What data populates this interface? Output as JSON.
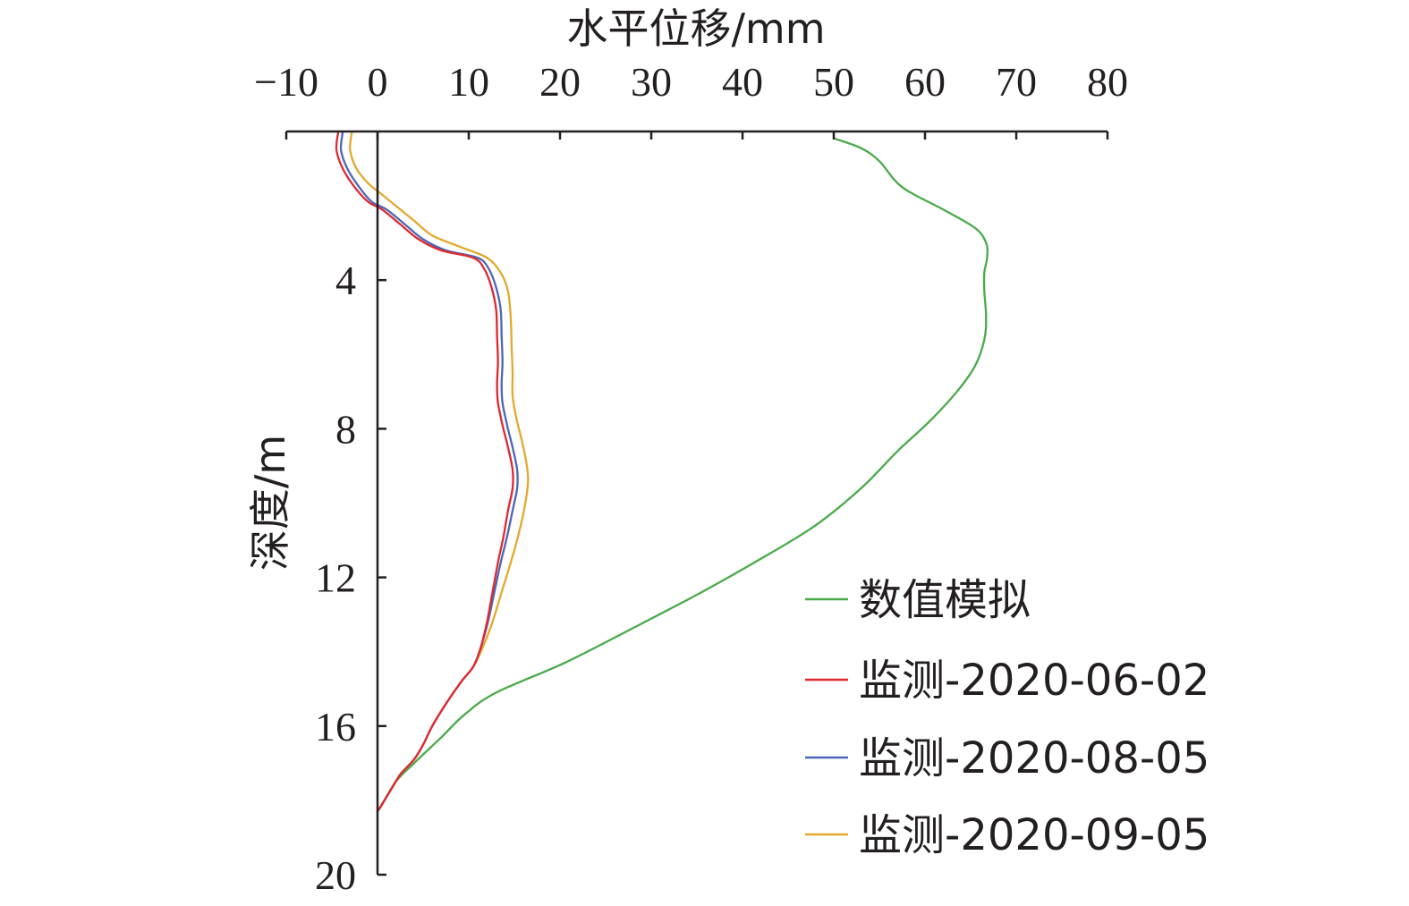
{
  "chart_data": {
    "type": "line",
    "xlabel": "水平位移/mm",
    "ylabel": "深度/m",
    "x_axis_position": "top",
    "y_inverted": true,
    "xlim": [
      -10,
      80
    ],
    "ylim": [
      0,
      20
    ],
    "x_ticks": [
      {
        "value": -10,
        "label": "−10"
      },
      {
        "value": 0,
        "label": "0"
      },
      {
        "value": 10,
        "label": "10"
      },
      {
        "value": 20,
        "label": "20"
      },
      {
        "value": 30,
        "label": "30"
      },
      {
        "value": 40,
        "label": "40"
      },
      {
        "value": 50,
        "label": "50"
      },
      {
        "value": 60,
        "label": "60"
      },
      {
        "value": 70,
        "label": "70"
      },
      {
        "value": 80,
        "label": "80"
      }
    ],
    "y_ticks": [
      {
        "value": 4,
        "label": "4"
      },
      {
        "value": 8,
        "label": "8"
      },
      {
        "value": 12,
        "label": "12"
      },
      {
        "value": 16,
        "label": "16"
      },
      {
        "value": 20,
        "label": "20"
      }
    ],
    "grid": false,
    "legend_position": "bottom-right",
    "series": [
      {
        "name": "数值模拟",
        "color": "#4aaa4a",
        "points": [
          [
            50.2,
            0.2
          ],
          [
            53,
            0.45
          ],
          [
            55,
            0.8
          ],
          [
            57.5,
            1.5
          ],
          [
            62,
            2.1
          ],
          [
            65.5,
            2.6
          ],
          [
            66.7,
            3.0
          ],
          [
            66.8,
            3.4
          ],
          [
            66.5,
            3.8
          ],
          [
            66.5,
            4.3
          ],
          [
            66.7,
            5.0
          ],
          [
            66.5,
            5.6
          ],
          [
            65.5,
            6.3
          ],
          [
            63.5,
            7.0
          ],
          [
            60.5,
            7.8
          ],
          [
            57,
            8.6
          ],
          [
            53,
            9.6
          ],
          [
            48,
            10.6
          ],
          [
            42,
            11.5
          ],
          [
            35.5,
            12.4
          ],
          [
            28.5,
            13.3
          ],
          [
            20.5,
            14.3
          ],
          [
            13,
            15.1
          ],
          [
            9.5,
            15.7
          ],
          [
            7,
            16.3
          ],
          [
            4,
            17.0
          ],
          [
            2,
            17.5
          ],
          [
            0.3,
            18.2
          ]
        ]
      },
      {
        "name": "监测-2020-06-02",
        "color": "#e0282e",
        "points": [
          [
            -4.3,
            0.0
          ],
          [
            -4.5,
            0.5
          ],
          [
            -3.8,
            1.0
          ],
          [
            -2.5,
            1.5
          ],
          [
            -1.0,
            1.9
          ],
          [
            0.5,
            2.1
          ],
          [
            2.5,
            2.5
          ],
          [
            4.5,
            2.9
          ],
          [
            7,
            3.2
          ],
          [
            10.5,
            3.4
          ],
          [
            11.7,
            3.7
          ],
          [
            12.5,
            4.2
          ],
          [
            13,
            4.8
          ],
          [
            13.1,
            5.5
          ],
          [
            13.2,
            6.2
          ],
          [
            13.1,
            6.8
          ],
          [
            13.2,
            7.3
          ],
          [
            13.7,
            7.9
          ],
          [
            14.3,
            8.5
          ],
          [
            14.8,
            9.1
          ],
          [
            14.8,
            9.6
          ],
          [
            14.3,
            10.2
          ],
          [
            13.8,
            10.9
          ],
          [
            13.2,
            11.6
          ],
          [
            12.6,
            12.4
          ],
          [
            12,
            13.2
          ],
          [
            11.3,
            13.9
          ],
          [
            10.5,
            14.4
          ],
          [
            9.2,
            14.8
          ],
          [
            7.5,
            15.4
          ],
          [
            6,
            16.0
          ],
          [
            5,
            16.5
          ],
          [
            4,
            16.9
          ],
          [
            2.5,
            17.3
          ],
          [
            1.5,
            17.7
          ],
          [
            0.5,
            18.1
          ],
          [
            0.0,
            18.3
          ]
        ]
      },
      {
        "name": "监测-2020-08-05",
        "color": "#4b67b7",
        "points": [
          [
            -3.8,
            0.0
          ],
          [
            -4.0,
            0.5
          ],
          [
            -3.3,
            1.0
          ],
          [
            -2.0,
            1.5
          ],
          [
            -0.6,
            1.9
          ],
          [
            1.0,
            2.1
          ],
          [
            3.0,
            2.5
          ],
          [
            5.0,
            2.9
          ],
          [
            7.5,
            3.2
          ],
          [
            11.0,
            3.4
          ],
          [
            12.2,
            3.7
          ],
          [
            13.0,
            4.2
          ],
          [
            13.5,
            4.8
          ],
          [
            13.6,
            5.5
          ],
          [
            13.7,
            6.2
          ],
          [
            13.6,
            6.8
          ],
          [
            13.7,
            7.3
          ],
          [
            14.2,
            7.9
          ],
          [
            14.8,
            8.5
          ],
          [
            15.3,
            9.1
          ],
          [
            15.3,
            9.6
          ],
          [
            14.8,
            10.2
          ],
          [
            14.2,
            10.9
          ],
          [
            13.5,
            11.6
          ],
          [
            12.8,
            12.4
          ],
          [
            12.1,
            13.2
          ],
          [
            11.3,
            13.9
          ],
          [
            10.5,
            14.4
          ],
          [
            9.2,
            14.8
          ],
          [
            7.5,
            15.4
          ],
          [
            6,
            16.0
          ],
          [
            5,
            16.5
          ],
          [
            4,
            16.9
          ],
          [
            2.5,
            17.3
          ],
          [
            1.5,
            17.7
          ],
          [
            0.5,
            18.1
          ],
          [
            0.0,
            18.3
          ]
        ]
      },
      {
        "name": "监测-2020-09-05",
        "color": "#e3a92c",
        "points": [
          [
            -2.8,
            0.0
          ],
          [
            -3.0,
            0.5
          ],
          [
            -2.3,
            1.0
          ],
          [
            -1.0,
            1.4
          ],
          [
            0.5,
            1.7
          ],
          [
            2.0,
            2.0
          ],
          [
            4.0,
            2.4
          ],
          [
            6.0,
            2.8
          ],
          [
            9.0,
            3.1
          ],
          [
            12.0,
            3.4
          ],
          [
            13.5,
            3.8
          ],
          [
            14.3,
            4.3
          ],
          [
            14.6,
            5.0
          ],
          [
            14.7,
            5.8
          ],
          [
            14.8,
            6.5
          ],
          [
            14.8,
            7.1
          ],
          [
            15.2,
            7.7
          ],
          [
            15.8,
            8.3
          ],
          [
            16.3,
            8.9
          ],
          [
            16.5,
            9.4
          ],
          [
            16.2,
            10.0
          ],
          [
            15.5,
            10.8
          ],
          [
            14.6,
            11.6
          ],
          [
            13.6,
            12.4
          ],
          [
            12.6,
            13.2
          ],
          [
            11.5,
            13.9
          ],
          [
            10.5,
            14.4
          ],
          [
            9.2,
            14.8
          ],
          [
            7.5,
            15.4
          ],
          [
            6,
            16.0
          ],
          [
            5,
            16.5
          ],
          [
            4,
            16.9
          ],
          [
            2.5,
            17.3
          ],
          [
            1.5,
            17.7
          ],
          [
            0.5,
            18.1
          ],
          [
            0.0,
            18.3
          ]
        ]
      }
    ]
  }
}
